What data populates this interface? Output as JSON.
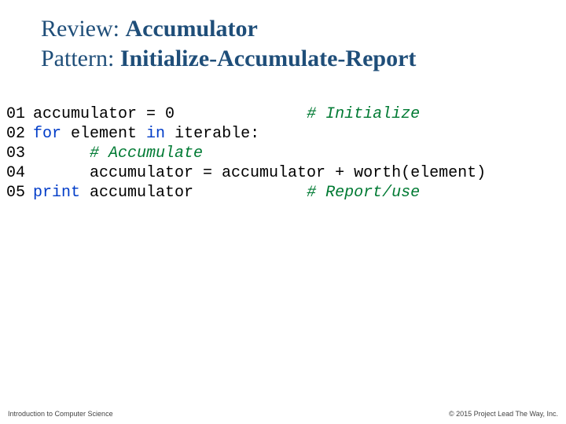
{
  "title": {
    "line1_plain": "Review: ",
    "line1_bold": "Accumulator",
    "line2_plain": "Pattern: ",
    "line2_bold": "Initialize-Accumulate-Report",
    "color": "#1f4e79",
    "fontsize_pt": 30
  },
  "code": {
    "font_family": "Courier New",
    "fontsize_pt": 20,
    "lineno_color": "#000000",
    "keyword_color": "#003cc8",
    "comment_color": "#007a33",
    "lines": [
      {
        "no": "01",
        "segments": [
          {
            "t": "accumulator = 0              ",
            "cls": ""
          },
          {
            "t": "# Initialize",
            "cls": "comment"
          }
        ]
      },
      {
        "no": "02",
        "segments": [
          {
            "t": "for",
            "cls": "kw"
          },
          {
            "t": " element ",
            "cls": ""
          },
          {
            "t": "in",
            "cls": "kw"
          },
          {
            "t": " iterable:",
            "cls": ""
          }
        ]
      },
      {
        "no": "03",
        "segments": [
          {
            "t": "      ",
            "cls": ""
          },
          {
            "t": "# Accumulate",
            "cls": "comment"
          }
        ]
      },
      {
        "no": "04",
        "segments": [
          {
            "t": "      accumulator = accumulator + worth(element)",
            "cls": ""
          }
        ]
      },
      {
        "no": "05",
        "segments": [
          {
            "t": "print",
            "cls": "kw"
          },
          {
            "t": " accumulator            ",
            "cls": ""
          },
          {
            "t": "# Report/use",
            "cls": "comment"
          }
        ]
      }
    ]
  },
  "footer": {
    "left": "Introduction to Computer Science",
    "right": "© 2015 Project Lead The Way, Inc.",
    "fontsize_pt": 9
  }
}
